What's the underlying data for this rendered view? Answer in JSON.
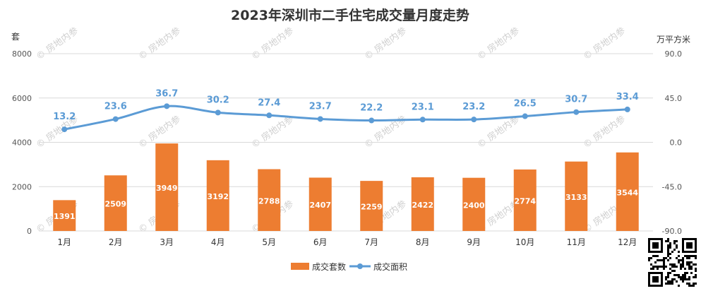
{
  "chart_data": {
    "type": "bar",
    "title": "2023年深圳市二手住宅成交量月度走势",
    "categories": [
      "1月",
      "2月",
      "3月",
      "4月",
      "5月",
      "6月",
      "7月",
      "8月",
      "9月",
      "10月",
      "11月",
      "12月"
    ],
    "series": [
      {
        "name": "成交套数",
        "type": "bar",
        "axis": "left",
        "values": [
          1391,
          2509,
          3949,
          3192,
          2788,
          2407,
          2259,
          2422,
          2400,
          2774,
          3133,
          3544
        ]
      },
      {
        "name": "成交面积",
        "type": "line",
        "axis": "right",
        "values": [
          13.2,
          23.6,
          36.7,
          30.2,
          27.4,
          23.7,
          22.2,
          23.1,
          23.2,
          26.5,
          30.7,
          33.4
        ]
      }
    ],
    "y_left": {
      "unit": "套",
      "ylim": [
        0,
        8000
      ],
      "ticks": [
        "0",
        "2000",
        "4000",
        "6000",
        "8000"
      ]
    },
    "y_right": {
      "unit": "万平方米",
      "ylim": [
        -90,
        90
      ],
      "ticks": [
        "-90.0",
        "-45.0",
        "0.0",
        "45.0",
        "90.0"
      ]
    },
    "grid": true,
    "legend_position": "bottom",
    "colors": {
      "bar": "#ED7D31",
      "line": "#5B9BD5",
      "line_label": "#5B9BD5"
    }
  },
  "watermark": "房地内参"
}
